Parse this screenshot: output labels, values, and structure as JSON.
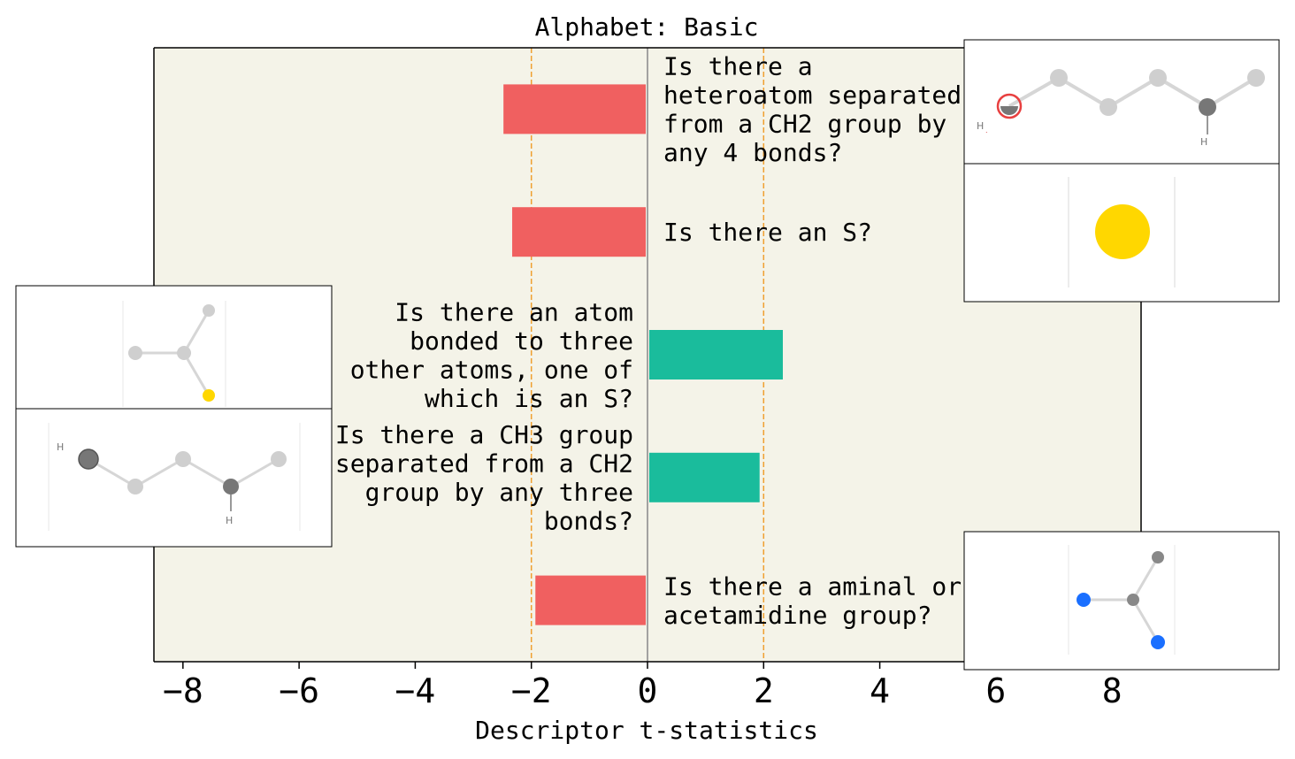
{
  "chart_data": {
    "type": "bar",
    "orientation": "horizontal",
    "title": "Alphabet: Basic",
    "xlabel": "Descriptor t-statistics",
    "ylabel": "",
    "xlim": [
      -8.5,
      8.5
    ],
    "x_ticks": [
      -8,
      -6,
      -4,
      -2,
      0,
      2,
      4,
      6,
      8
    ],
    "x_tick_labels": [
      "−8",
      "−6",
      "−4",
      "−2",
      "0",
      "2",
      "4",
      "6",
      "8"
    ],
    "threshold_lines": [
      -2,
      2
    ],
    "grid": false,
    "bars": [
      {
        "label": [
          "Is there a",
          "heteroatom separated",
          "from a CH2 group by",
          "any 4 bonds?"
        ],
        "value": -2.45
      },
      {
        "label": [
          "Is there an S?"
        ],
        "value": -2.3
      },
      {
        "label": [
          "Is there an atom",
          "bonded to three",
          "other atoms, one of",
          "which is an S?"
        ],
        "value": 2.3
      },
      {
        "label": [
          "Is there a CH3 group",
          "separated from a CH2",
          "group by any three",
          "bonds?"
        ],
        "value": 1.9
      },
      {
        "label": [
          "Is there a aminal or",
          "acetamidine group?"
        ],
        "value": -1.9
      }
    ],
    "colors": {
      "positive": "#1abc9c",
      "negative": "#f06060",
      "background": "#f4f3e8",
      "threshold": "#f0a030",
      "zero_line": "#888888"
    }
  },
  "molecule_insets": [
    {
      "id": "top-right-a",
      "icon": "molecule-chain-heteroatom"
    },
    {
      "id": "top-right-b",
      "icon": "molecule-sulfur-atom"
    },
    {
      "id": "left-a",
      "icon": "molecule-sulfur-branch"
    },
    {
      "id": "left-b",
      "icon": "molecule-ch3-chain"
    },
    {
      "id": "bottom-right",
      "icon": "molecule-aminal"
    }
  ]
}
